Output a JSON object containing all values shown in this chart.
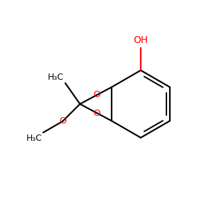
{
  "bg_color": "#ffffff",
  "bond_color": "#000000",
  "o_color": "#ff0000",
  "line_width": 1.6,
  "figsize": [
    3.0,
    3.0
  ],
  "dpi": 100,
  "xlim": [
    0,
    10
  ],
  "ylim": [
    0,
    10
  ]
}
